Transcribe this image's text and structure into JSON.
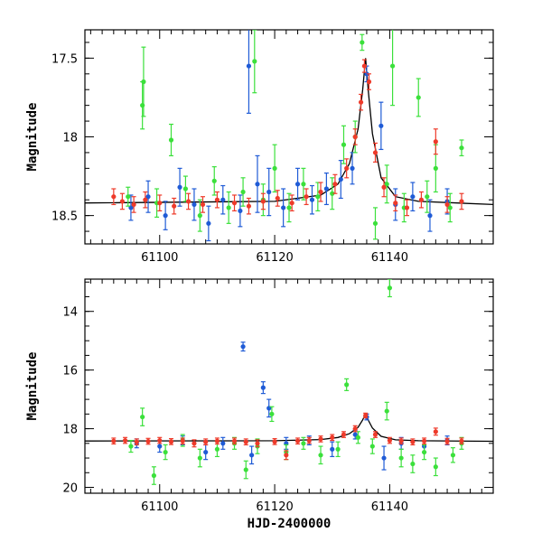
{
  "chart_data": [
    {
      "type": "scatter",
      "panel": "top",
      "ylabel": "Magnitude",
      "xlabel": "",
      "xlim": [
        61087,
        61158
      ],
      "ylim": [
        18.68,
        17.32
      ],
      "y_inverted": true,
      "x_ticks": [
        61100,
        61120,
        61140
      ],
      "x_tick_labels": [
        "61100",
        "61120",
        "61140"
      ],
      "y_ticks": [
        17.5,
        18,
        18.5
      ],
      "y_tick_labels": [
        "17.5",
        "18",
        "18.5"
      ],
      "model_curve": {
        "name": "microlensing-model",
        "color": "#000000",
        "baseline": 18.42,
        "peak_time": 61135.8,
        "peak_mag": 17.5,
        "x": [
          61087,
          61120,
          61128,
          61131,
          61133,
          61134.5,
          61135.3,
          61135.8,
          61136.3,
          61137,
          61138.5,
          61141,
          61145,
          61158
        ],
        "y": [
          18.42,
          18.41,
          18.37,
          18.3,
          18.17,
          17.95,
          17.7,
          17.5,
          17.72,
          17.98,
          18.26,
          18.38,
          18.41,
          18.43
        ]
      },
      "series": [
        {
          "name": "blue",
          "color": "#1f5bd6",
          "x": [
            61095,
            61098,
            61101,
            61103.5,
            61106,
            61108.5,
            61111,
            61114,
            61115.5,
            61117,
            61119,
            61121.5,
            61124,
            61126.5,
            61129,
            61131.5,
            61133.5,
            61136,
            61138.5,
            61141,
            61144,
            61147,
            61150
          ],
          "y": [
            18.45,
            18.38,
            18.5,
            18.32,
            18.43,
            18.55,
            18.4,
            18.47,
            17.55,
            18.3,
            18.35,
            18.45,
            18.3,
            18.4,
            18.33,
            18.27,
            18.2,
            17.6,
            17.93,
            18.43,
            18.38,
            18.5,
            18.41
          ],
          "err": [
            0.08,
            0.1,
            0.09,
            0.12,
            0.1,
            0.11,
            0.09,
            0.1,
            0.3,
            0.18,
            0.15,
            0.12,
            0.1,
            0.09,
            0.1,
            0.12,
            0.1,
            0.05,
            0.15,
            0.1,
            0.09,
            0.1,
            0.08
          ]
        },
        {
          "name": "green",
          "color": "#3be03b",
          "x": [
            61094.5,
            61097,
            61097.2,
            61099.5,
            61102,
            61104.5,
            61107,
            61109.5,
            61112,
            61114.5,
            61116.5,
            61118,
            61120,
            61122.5,
            61125,
            61127.5,
            61130,
            61132,
            61134,
            61135.2,
            61137.5,
            61139.5,
            61140.5,
            61142.5,
            61145,
            61146.5,
            61148,
            61150.5,
            61152.5
          ],
          "y": [
            18.38,
            17.8,
            17.65,
            18.42,
            18.02,
            18.33,
            18.5,
            18.28,
            18.45,
            18.35,
            17.52,
            18.4,
            18.2,
            18.45,
            18.3,
            18.38,
            18.36,
            18.05,
            18.0,
            17.4,
            18.55,
            18.3,
            17.55,
            18.45,
            17.75,
            18.38,
            18.2,
            18.45,
            18.07
          ],
          "err": [
            0.06,
            0.15,
            0.22,
            0.09,
            0.1,
            0.08,
            0.1,
            0.09,
            0.1,
            0.09,
            0.2,
            0.1,
            0.15,
            0.09,
            0.1,
            0.09,
            0.1,
            0.12,
            0.1,
            0.05,
            0.1,
            0.12,
            0.25,
            0.09,
            0.12,
            0.1,
            0.15,
            0.09,
            0.05
          ]
        },
        {
          "name": "red",
          "color": "#ee3a2a",
          "x": [
            61092,
            61093.5,
            61095.5,
            61097.5,
            61100,
            61102.5,
            61105,
            61107.5,
            61110,
            61113,
            61115.5,
            61118,
            61120.5,
            61123,
            61125.5,
            61128,
            61130.5,
            61132.5,
            61134,
            61135,
            61135.6,
            61136.4,
            61137.5,
            61139,
            61141,
            61143,
            61145.5,
            61148,
            61150,
            61152.5
          ],
          "y": [
            18.38,
            18.41,
            18.43,
            18.4,
            18.42,
            18.44,
            18.41,
            18.43,
            18.4,
            18.42,
            18.44,
            18.41,
            18.39,
            18.42,
            18.38,
            18.35,
            18.3,
            18.2,
            18.0,
            17.78,
            17.55,
            17.65,
            18.1,
            18.32,
            18.42,
            18.45,
            18.4,
            18.03,
            18.43,
            18.41
          ],
          "err": [
            0.05,
            0.05,
            0.05,
            0.05,
            0.05,
            0.05,
            0.05,
            0.05,
            0.05,
            0.05,
            0.05,
            0.05,
            0.05,
            0.05,
            0.05,
            0.06,
            0.06,
            0.06,
            0.05,
            0.05,
            0.04,
            0.05,
            0.06,
            0.06,
            0.05,
            0.05,
            0.05,
            0.08,
            0.05,
            0.05
          ]
        }
      ]
    },
    {
      "type": "scatter",
      "panel": "bottom",
      "ylabel": "Magnitude",
      "xlabel": "HJD-2400000",
      "xlim": [
        61087,
        61158
      ],
      "ylim": [
        20.2,
        12.9
      ],
      "y_inverted": true,
      "x_ticks": [
        61100,
        61120,
        61140
      ],
      "x_tick_labels": [
        "61100",
        "61120",
        "61140"
      ],
      "y_ticks": [
        14,
        16,
        18,
        20
      ],
      "y_tick_labels": [
        "14",
        "16",
        "18",
        "20"
      ],
      "model_curve": {
        "name": "microlensing-model",
        "color": "#000000",
        "x": [
          61087,
          61120,
          61128,
          61131,
          61133,
          61134.5,
          61135.3,
          61135.8,
          61136.3,
          61137,
          61138.5,
          61141,
          61145,
          61158
        ],
        "y": [
          18.42,
          18.41,
          18.37,
          18.3,
          18.17,
          17.95,
          17.7,
          17.5,
          17.72,
          17.98,
          18.26,
          18.38,
          18.41,
          18.43
        ]
      },
      "series": [
        {
          "name": "blue",
          "color": "#1f5bd6",
          "x": [
            61096,
            61100,
            61104,
            61108,
            61111,
            61114.5,
            61116,
            61118,
            61119,
            61122,
            61126,
            61130,
            61134,
            61136,
            61139,
            61142,
            61146,
            61150
          ],
          "y": [
            18.5,
            18.6,
            18.4,
            18.8,
            18.5,
            15.2,
            18.9,
            16.6,
            17.3,
            18.5,
            18.4,
            18.7,
            18.2,
            17.6,
            19.0,
            18.5,
            18.6,
            18.4
          ],
          "err": [
            0.15,
            0.2,
            0.15,
            0.25,
            0.2,
            0.15,
            0.3,
            0.2,
            0.3,
            0.2,
            0.15,
            0.25,
            0.15,
            0.1,
            0.4,
            0.2,
            0.2,
            0.15
          ]
        },
        {
          "name": "green",
          "color": "#3be03b",
          "x": [
            61095,
            61097,
            61099,
            61101,
            61104,
            61107,
            61110,
            61113,
            61115,
            61117,
            61119.5,
            61122,
            61125,
            61128,
            61131,
            61132.5,
            61134.5,
            61137,
            61139.5,
            61140,
            61142,
            61144,
            61146,
            61148,
            61151,
            61152.5
          ],
          "y": [
            18.6,
            17.6,
            19.6,
            18.8,
            18.4,
            19.0,
            18.7,
            18.5,
            19.4,
            18.6,
            17.5,
            18.8,
            18.5,
            18.9,
            18.7,
            16.5,
            18.3,
            18.6,
            17.4,
            13.2,
            19.0,
            19.2,
            18.8,
            19.3,
            18.9,
            18.5
          ],
          "err": [
            0.2,
            0.3,
            0.3,
            0.25,
            0.2,
            0.3,
            0.25,
            0.2,
            0.3,
            0.25,
            0.25,
            0.25,
            0.2,
            0.3,
            0.25,
            0.2,
            0.2,
            0.25,
            0.3,
            0.3,
            0.3,
            0.3,
            0.25,
            0.3,
            0.25,
            0.2
          ]
        },
        {
          "name": "red",
          "color": "#ee3a2a",
          "x": [
            61092,
            61094,
            61096,
            61098,
            61100,
            61102,
            61104,
            61106,
            61108,
            61110,
            61113,
            61115,
            61117,
            61120,
            61122,
            61124,
            61126,
            61128,
            61130,
            61132,
            61134,
            61135.8,
            61137.5,
            61140,
            61142,
            61144,
            61146,
            61148,
            61150,
            61152.5
          ],
          "y": [
            18.42,
            18.4,
            18.45,
            18.43,
            18.4,
            18.44,
            18.42,
            18.5,
            18.45,
            18.42,
            18.42,
            18.45,
            18.5,
            18.44,
            18.9,
            18.42,
            18.4,
            18.35,
            18.3,
            18.2,
            18.0,
            17.55,
            18.2,
            18.4,
            18.42,
            18.45,
            18.42,
            18.1,
            18.43,
            18.42
          ],
          "err": [
            0.1,
            0.1,
            0.1,
            0.1,
            0.1,
            0.1,
            0.1,
            0.12,
            0.1,
            0.1,
            0.1,
            0.1,
            0.12,
            0.1,
            0.15,
            0.1,
            0.1,
            0.1,
            0.1,
            0.1,
            0.1,
            0.08,
            0.1,
            0.1,
            0.1,
            0.1,
            0.1,
            0.12,
            0.1,
            0.1
          ]
        }
      ]
    }
  ]
}
